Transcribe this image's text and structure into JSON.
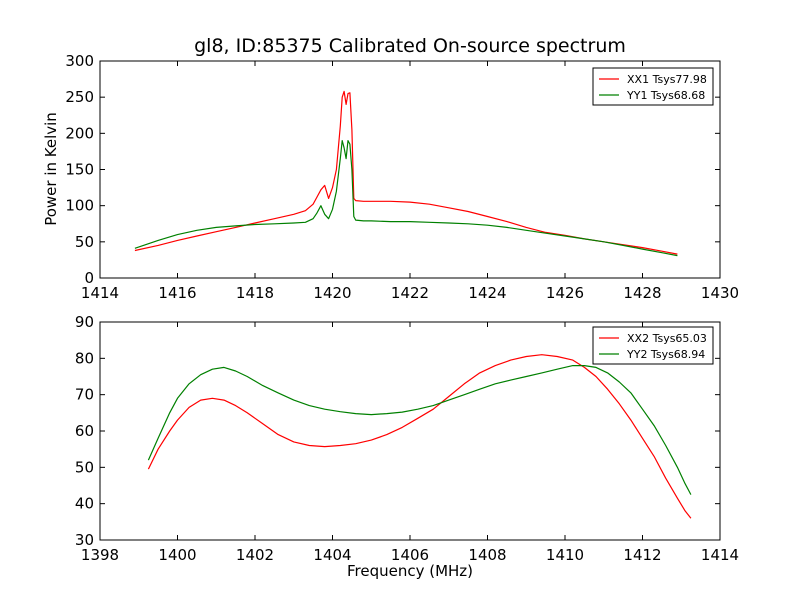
{
  "figure": {
    "title": "gl8, ID:85375 Calibrated On-source spectrum"
  },
  "chart_data": [
    {
      "type": "line",
      "title": "gl8, ID:85375 Calibrated On-source spectrum",
      "xlabel": "",
      "ylabel": "Power in Kelvin",
      "xlim": [
        1414,
        1430
      ],
      "ylim": [
        0,
        300
      ],
      "xticks": [
        1414,
        1416,
        1418,
        1420,
        1422,
        1424,
        1426,
        1428,
        1430
      ],
      "yticks": [
        0,
        50,
        100,
        150,
        200,
        250,
        300
      ],
      "grid": false,
      "legend_position": "top-right",
      "series": [
        {
          "name": "XX1 Tsys77.98",
          "color": "#ff0000",
          "x": [
            1414.9,
            1415.5,
            1416.0,
            1416.5,
            1417.0,
            1417.5,
            1418.0,
            1418.5,
            1419.0,
            1419.3,
            1419.5,
            1419.6,
            1419.7,
            1419.8,
            1419.9,
            1420.0,
            1420.1,
            1420.2,
            1420.25,
            1420.3,
            1420.35,
            1420.4,
            1420.45,
            1420.5,
            1420.55,
            1420.6,
            1420.8,
            1421.0,
            1421.5,
            1422.0,
            1422.5,
            1423.0,
            1423.5,
            1424.0,
            1424.5,
            1425.0,
            1425.5,
            1426.0,
            1426.5,
            1427.0,
            1427.5,
            1428.0,
            1428.5,
            1428.9
          ],
          "y": [
            38,
            45,
            52,
            58,
            64,
            70,
            76,
            82,
            88,
            93,
            102,
            112,
            122,
            128,
            110,
            125,
            150,
            210,
            250,
            258,
            240,
            255,
            256,
            205,
            110,
            107,
            106,
            106,
            106,
            105,
            102,
            97,
            92,
            85,
            78,
            70,
            63,
            59,
            54,
            50,
            46,
            42,
            37,
            33
          ]
        },
        {
          "name": "YY1 Tsys68.68",
          "color": "#008000",
          "x": [
            1414.9,
            1415.5,
            1416.0,
            1416.5,
            1417.0,
            1417.5,
            1418.0,
            1418.5,
            1419.0,
            1419.3,
            1419.5,
            1419.6,
            1419.7,
            1419.8,
            1419.9,
            1420.0,
            1420.1,
            1420.2,
            1420.25,
            1420.3,
            1420.35,
            1420.4,
            1420.45,
            1420.5,
            1420.55,
            1420.6,
            1420.8,
            1421.0,
            1421.5,
            1422.0,
            1422.5,
            1423.0,
            1423.5,
            1424.0,
            1424.5,
            1425.0,
            1425.5,
            1426.0,
            1426.5,
            1427.0,
            1427.5,
            1428.0,
            1428.5,
            1428.9
          ],
          "y": [
            41,
            52,
            60,
            66,
            70,
            72,
            74,
            75,
            76,
            77,
            82,
            90,
            100,
            88,
            82,
            95,
            120,
            165,
            190,
            180,
            165,
            190,
            185,
            150,
            85,
            80,
            79,
            79,
            78,
            78,
            77,
            76,
            75,
            73,
            70,
            66,
            62,
            58,
            54,
            50,
            45,
            40,
            35,
            31
          ]
        }
      ]
    },
    {
      "type": "line",
      "title": "",
      "xlabel": "Frequency (MHz)",
      "ylabel": "",
      "xlim": [
        1398,
        1414
      ],
      "ylim": [
        30,
        90
      ],
      "xticks": [
        1398,
        1400,
        1402,
        1404,
        1406,
        1408,
        1410,
        1412,
        1414
      ],
      "yticks": [
        30,
        40,
        50,
        60,
        70,
        80,
        90
      ],
      "grid": false,
      "legend_position": "top-right",
      "series": [
        {
          "name": "XX2 Tsys65.03",
          "color": "#ff0000",
          "x": [
            1399.25,
            1399.5,
            1399.8,
            1400.0,
            1400.3,
            1400.6,
            1400.9,
            1401.2,
            1401.5,
            1401.8,
            1402.2,
            1402.6,
            1403.0,
            1403.4,
            1403.8,
            1404.2,
            1404.6,
            1405.0,
            1405.4,
            1405.8,
            1406.2,
            1406.6,
            1407.0,
            1407.4,
            1407.8,
            1408.2,
            1408.6,
            1409.0,
            1409.4,
            1409.8,
            1410.2,
            1410.5,
            1410.8,
            1411.1,
            1411.4,
            1411.7,
            1412.0,
            1412.3,
            1412.6,
            1412.9,
            1413.1,
            1413.25
          ],
          "y": [
            49.5,
            55,
            60,
            63,
            66.5,
            68.5,
            69,
            68.5,
            67,
            65,
            62,
            59,
            57,
            56,
            55.7,
            56,
            56.5,
            57.5,
            59,
            61,
            63.5,
            66,
            69.5,
            73,
            76,
            78,
            79.5,
            80.5,
            81,
            80.5,
            79.5,
            77.5,
            75,
            71.5,
            67.5,
            63,
            58,
            53,
            47,
            41.5,
            38,
            36
          ]
        },
        {
          "name": "YY2 Tsys68.94",
          "color": "#008000",
          "x": [
            1399.25,
            1399.5,
            1399.8,
            1400.0,
            1400.3,
            1400.6,
            1400.9,
            1401.2,
            1401.5,
            1401.8,
            1402.2,
            1402.6,
            1403.0,
            1403.4,
            1403.8,
            1404.2,
            1404.6,
            1405.0,
            1405.4,
            1405.8,
            1406.2,
            1406.6,
            1407.0,
            1407.4,
            1407.8,
            1408.2,
            1408.6,
            1409.0,
            1409.4,
            1409.8,
            1410.2,
            1410.5,
            1410.8,
            1411.1,
            1411.4,
            1411.7,
            1412.0,
            1412.3,
            1412.6,
            1412.9,
            1413.1,
            1413.25
          ],
          "y": [
            52,
            58,
            65,
            69,
            73,
            75.5,
            77,
            77.5,
            76.5,
            75,
            72.5,
            70.5,
            68.5,
            67,
            66,
            65.3,
            64.8,
            64.5,
            64.8,
            65.2,
            66,
            67,
            68.5,
            70,
            71.5,
            73,
            74,
            75,
            76,
            77,
            78,
            78,
            77.5,
            76,
            73.5,
            70.5,
            66,
            61.5,
            56,
            50,
            45.5,
            42.5
          ]
        }
      ]
    }
  ]
}
